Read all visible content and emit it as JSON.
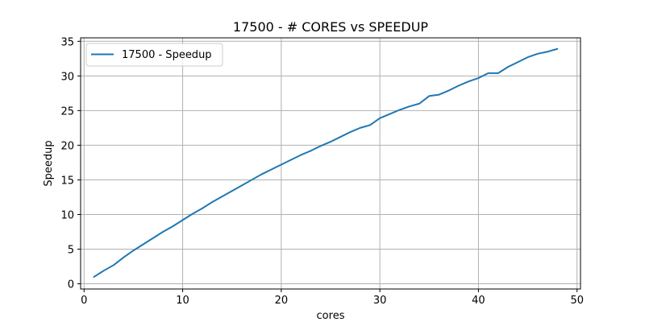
{
  "chart_data": {
    "type": "line",
    "title": "17500 - # CORES vs SPEEDUP",
    "xlabel": "cores",
    "ylabel": "Speedup",
    "xlim": [
      -0.35,
      50.35
    ],
    "ylim": [
      -0.75,
      35.5
    ],
    "xticks": [
      0,
      10,
      20,
      30,
      40,
      50
    ],
    "yticks": [
      0,
      5,
      10,
      15,
      20,
      25,
      30,
      35
    ],
    "grid": true,
    "legend_position": "upper-left",
    "series": [
      {
        "name": "17500 - Speedup",
        "color": "#1f77b4",
        "x": [
          1,
          2,
          3,
          4,
          5,
          6,
          7,
          8,
          9,
          10,
          11,
          12,
          13,
          14,
          15,
          16,
          17,
          18,
          19,
          20,
          21,
          22,
          23,
          24,
          25,
          26,
          27,
          28,
          29,
          30,
          31,
          32,
          33,
          34,
          35,
          36,
          37,
          38,
          39,
          40,
          41,
          42,
          43,
          44,
          45,
          46,
          47,
          48
        ],
        "y": [
          1.0,
          1.9,
          2.7,
          3.8,
          4.8,
          5.7,
          6.6,
          7.5,
          8.3,
          9.2,
          10.1,
          10.9,
          11.8,
          12.6,
          13.4,
          14.2,
          15.0,
          15.8,
          16.5,
          17.2,
          17.9,
          18.6,
          19.2,
          19.9,
          20.5,
          21.2,
          21.9,
          22.5,
          22.9,
          23.9,
          24.5,
          25.1,
          25.6,
          26.0,
          27.1,
          27.3,
          27.9,
          28.6,
          29.2,
          29.7,
          30.4,
          30.4,
          31.3,
          32.0,
          32.7,
          33.2,
          33.5,
          33.9
        ]
      }
    ]
  }
}
